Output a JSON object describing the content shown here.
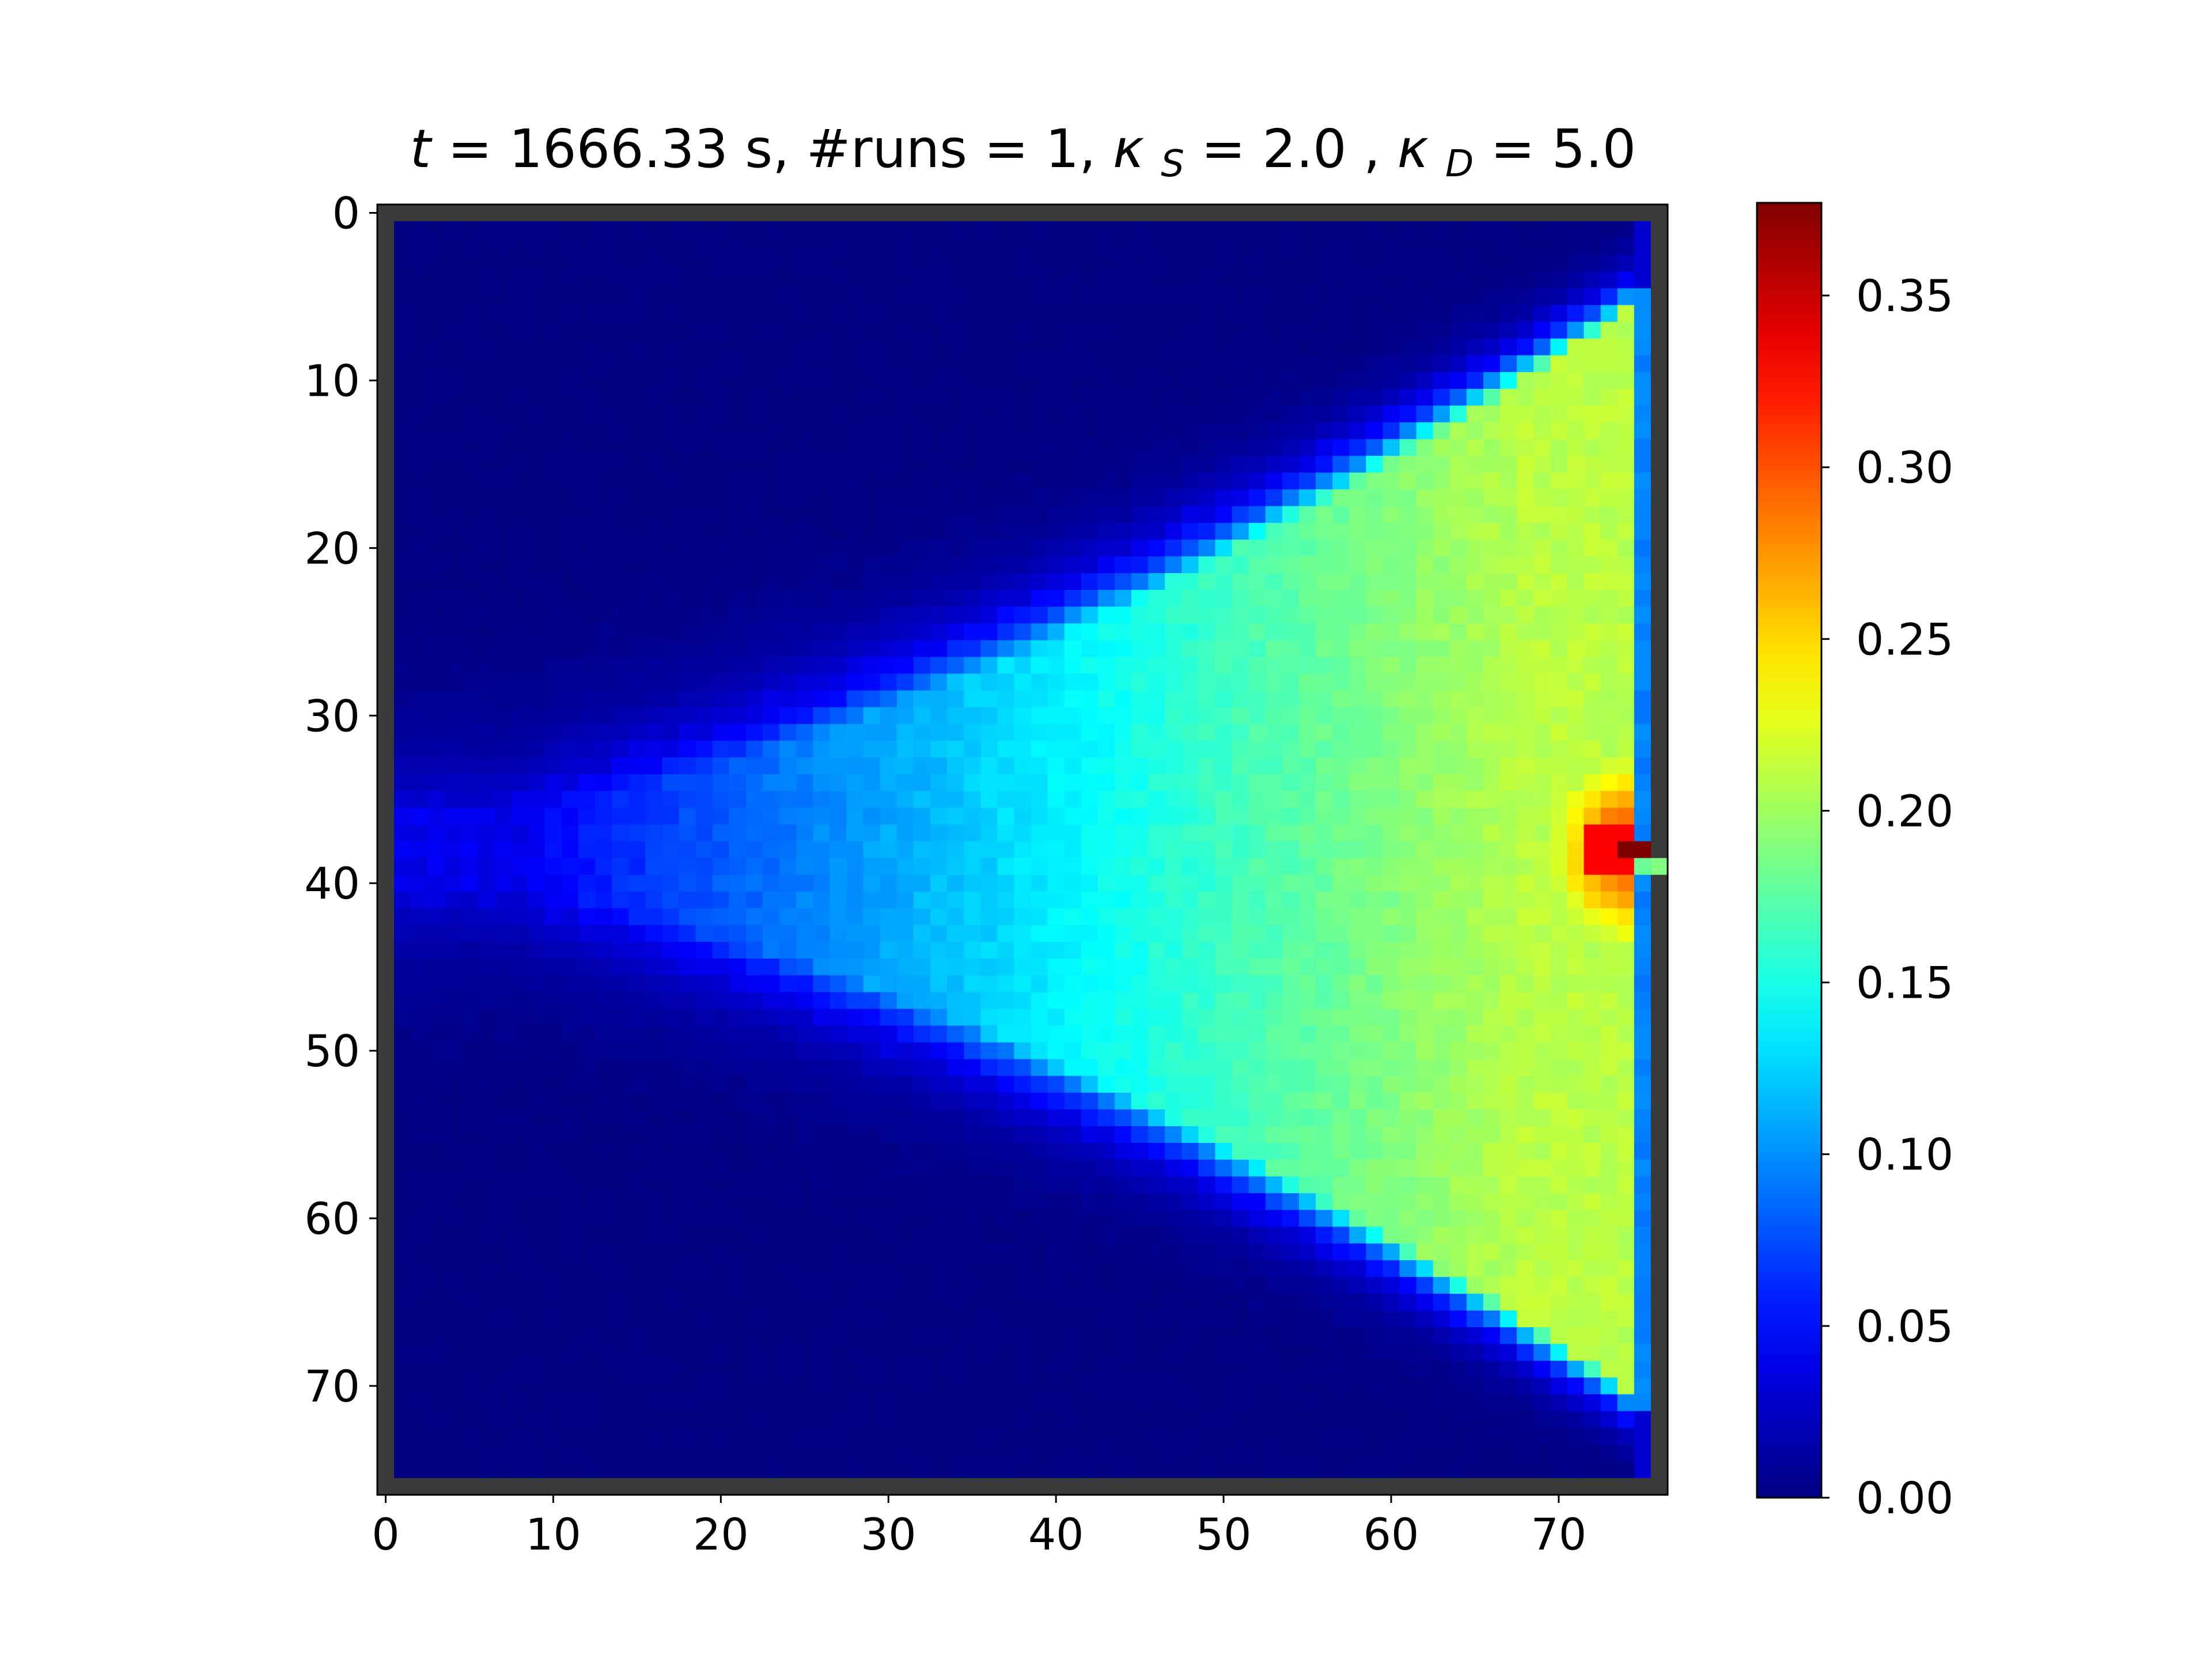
{
  "chart_data": {
    "type": "heatmap",
    "title": {
      "t_symbol": "t",
      "t_rest": " = 1666.33 s, #runs = 1, ",
      "kappa_s_symbol": "κ",
      "kappa_s_sub": "S",
      "kappa_s_rest": " = 2.0 , ",
      "kappa_d_symbol": "κ",
      "kappa_d_sub": "D",
      "kappa_d_rest": " = 5.0"
    },
    "grid": {
      "cols": 77,
      "rows": 77
    },
    "xlim": [
      -0.5,
      76.5
    ],
    "ylim": [
      76.5,
      -0.5
    ],
    "y_inverted": true,
    "colormap": "jet",
    "x_ticks": [
      "0",
      "10",
      "20",
      "30",
      "40",
      "50",
      "60",
      "70"
    ],
    "y_ticks": [
      "0",
      "10",
      "20",
      "30",
      "40",
      "50",
      "60",
      "70"
    ],
    "colorbar": {
      "vmin": 0.0,
      "vmax": 0.377,
      "ticks": [
        "0.00",
        "0.05",
        "0.10",
        "0.15",
        "0.20",
        "0.25",
        "0.30",
        "0.35"
      ]
    },
    "field_description": "wedge-shaped concentration plume opening toward right; source near column 75, row 38",
    "field_model": {
      "apex_col": 12,
      "center_row": 38,
      "right_edge_col": 74,
      "half_width_at_right": 32,
      "plateau_value": 0.21,
      "hotspot": {
        "col": 74,
        "row": 38,
        "value": 0.377
      },
      "boundary_color": "#3a3a3a"
    }
  }
}
